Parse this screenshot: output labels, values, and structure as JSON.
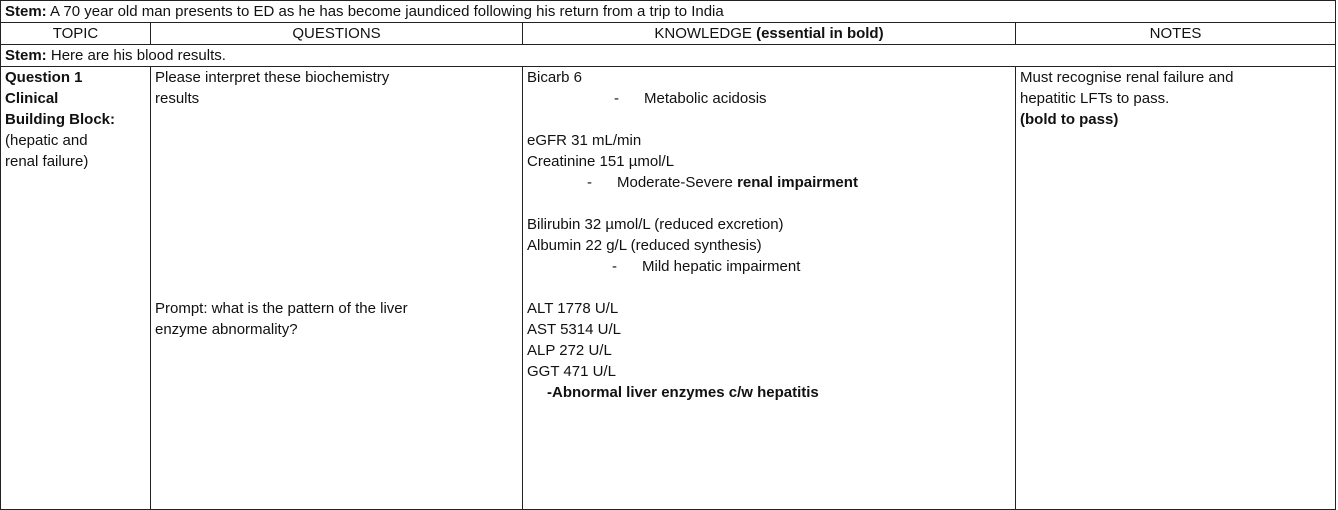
{
  "stem1": {
    "label": "Stem:",
    "text": " A 70 year old man presents to ED as he has become jaundiced following his return from a trip to India"
  },
  "headers": {
    "topic": "TOPIC",
    "questions": "QUESTIONS",
    "knowledge_plain": "KNOWLEDGE ",
    "knowledge_bold": "(essential in bold)",
    "notes": "NOTES"
  },
  "stem2": {
    "label": "Stem:",
    "text": " Here are his blood results."
  },
  "topic": {
    "title_lines": [
      "Question 1",
      "Clinical",
      "Building Block:"
    ],
    "sub_lines": [
      "(hepatic and",
      "renal failure)"
    ]
  },
  "questions": {
    "q1_lines": [
      "Please interpret these biochemistry",
      "results"
    ],
    "prompt_lines": [
      "Prompt: what is the pattern of the liver",
      "enzyme abnormality?"
    ]
  },
  "knowledge": {
    "bicarb": "Bicarb 6",
    "acidosis": "Metabolic acidosis",
    "egfr": "eGFR 31 mL/min",
    "creatinine": "Creatinine 151 µmol/L",
    "renal_plain": "Moderate-Severe ",
    "renal_bold": "renal impairment",
    "bilirubin": "Bilirubin 32 µmol/L (reduced excretion)",
    "albumin": "Albumin 22 g/L (reduced synthesis)",
    "hepatic": "Mild hepatic impairment",
    "alt": "ALT 1778 U/L",
    "ast": "AST 5314 U/L",
    "alp": "ALP 272 U/L",
    "ggt": "GGT 471 U/L",
    "enzymes": "-Abnormal liver enzymes  c/w hepatitis",
    "dash": "-"
  },
  "notes": {
    "lines": [
      "Must recognise renal failure and",
      "hepatitic LFTs to pass."
    ],
    "bold": "(bold to pass)"
  }
}
